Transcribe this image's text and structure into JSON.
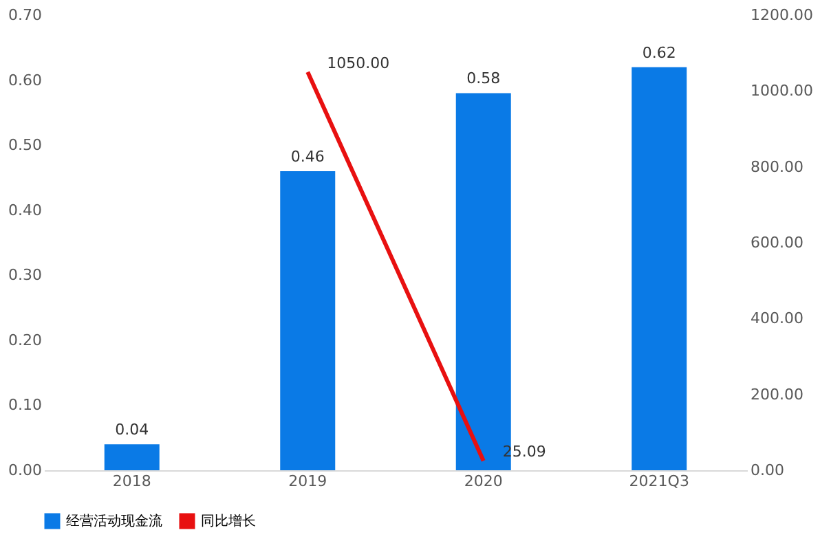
{
  "chart_data": {
    "type": "bar",
    "categories": [
      "2018",
      "2019",
      "2020",
      "2021Q3"
    ],
    "series": [
      {
        "name": "经营活动现金流",
        "color": "#0a7ae6",
        "values": [
          0.04,
          0.46,
          0.58,
          0.62
        ],
        "value_labels": [
          "0.04",
          "0.46",
          "0.58",
          "0.62"
        ]
      },
      {
        "name": "同比增长",
        "type": "line",
        "axis": "y2",
        "color": "#e81010",
        "values": [
          null,
          1050,
          25.09,
          null
        ],
        "value_labels": [
          null,
          "1050.00",
          "25.09",
          null
        ]
      }
    ],
    "ylim": [
      0,
      0.7
    ],
    "yticks": [
      {
        "value": 0,
        "label": "0.00"
      },
      {
        "value": 0.1,
        "label": "0.10"
      },
      {
        "value": 0.2,
        "label": "0.20"
      },
      {
        "value": 0.3,
        "label": "0.30"
      },
      {
        "value": 0.4,
        "label": "0.40"
      },
      {
        "value": 0.5,
        "label": "0.50"
      },
      {
        "value": 0.6,
        "label": "0.60"
      },
      {
        "value": 0.7,
        "label": "0.70"
      }
    ],
    "y2lim": [
      0,
      1200
    ],
    "y2ticks": [
      {
        "value": 0,
        "label": "0.00"
      },
      {
        "value": 200,
        "label": "200.00"
      },
      {
        "value": 400,
        "label": "400.00"
      },
      {
        "value": 600,
        "label": "600.00"
      },
      {
        "value": 800,
        "label": "800.00"
      },
      {
        "value": 1000,
        "label": "1000.00"
      },
      {
        "value": 1200,
        "label": "1200.00"
      }
    ],
    "grid": false,
    "legend": "bottom"
  }
}
